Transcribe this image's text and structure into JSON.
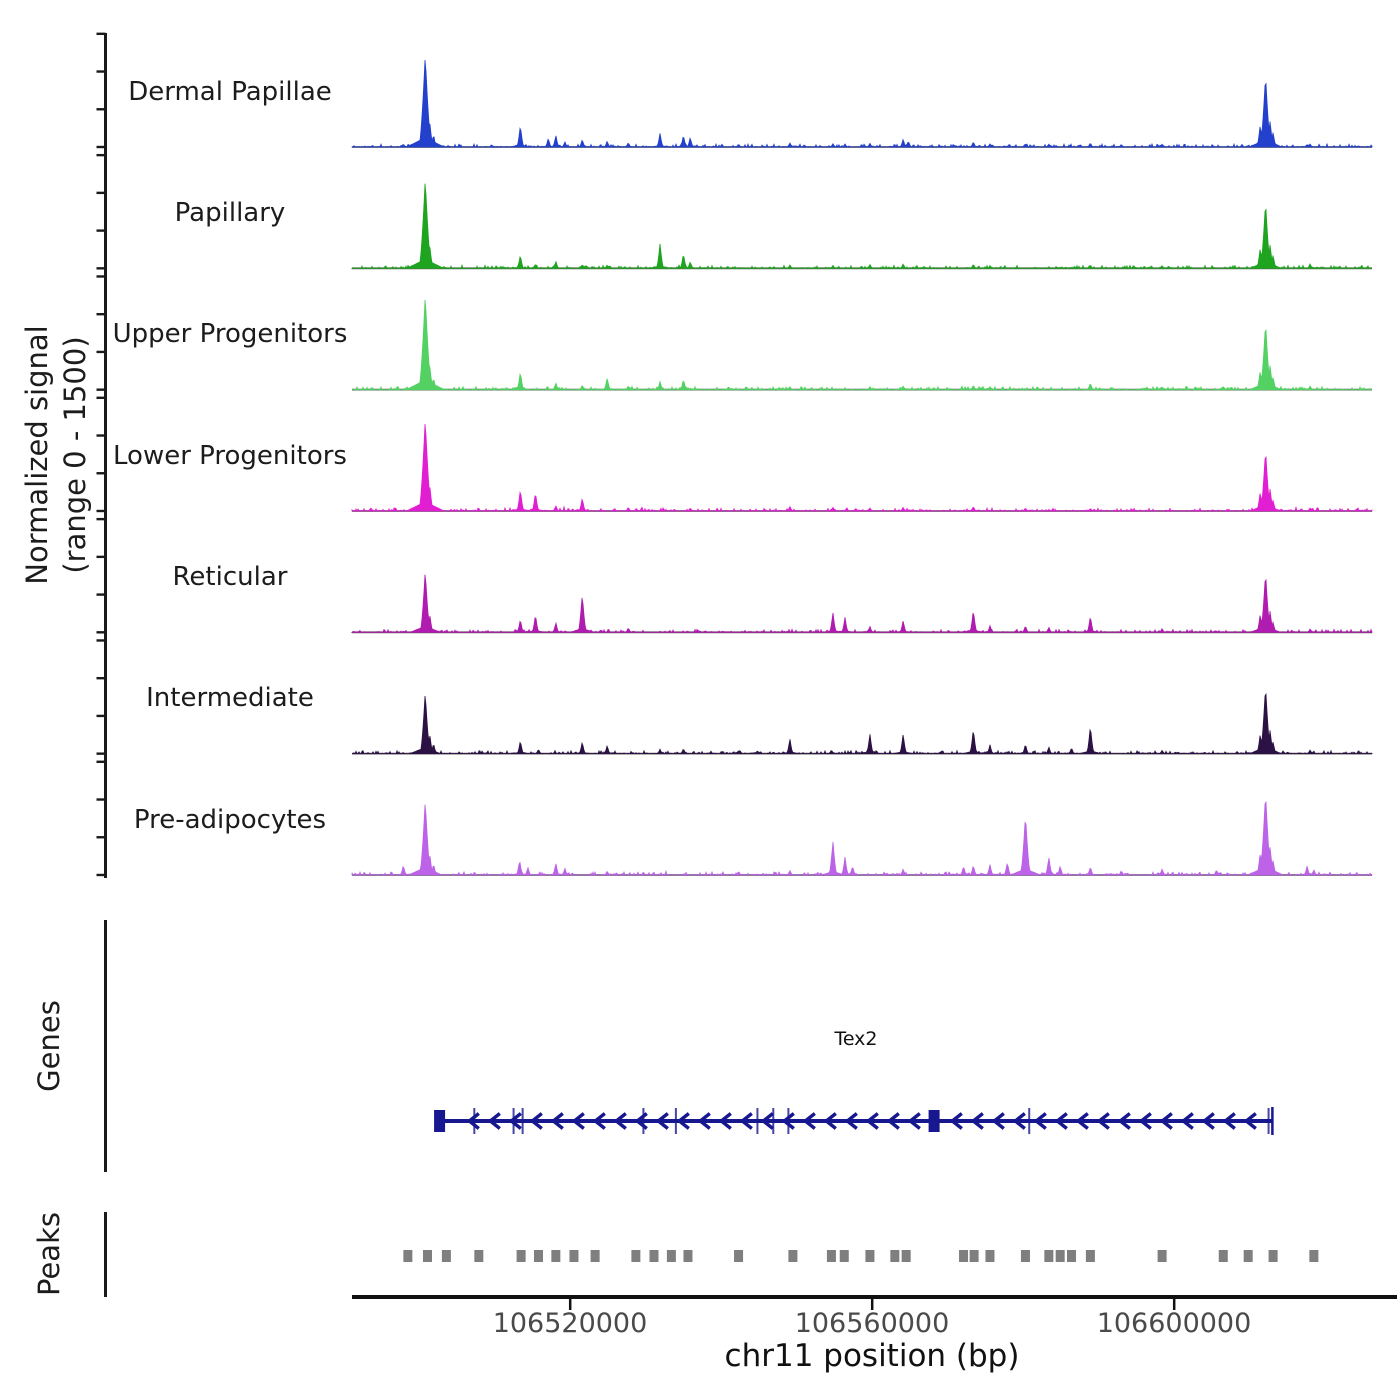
{
  "labels": {
    "y_axis_line1": "Normalized signal",
    "y_axis_line2": "(range 0 - 1500)",
    "genes_section": "Genes",
    "peaks_section": "Peaks",
    "x_axis": "chr11 position (bp)",
    "x_ticks": [
      {
        "bp": 106520000,
        "label": "106520000"
      },
      {
        "bp": 106560000,
        "label": "106560000"
      },
      {
        "bp": 106600000,
        "label": "106600000"
      }
    ]
  },
  "chart_data": {
    "type": "area",
    "title": "",
    "xlabel": "chr11 position (bp)",
    "ylabel": "Normalized signal (range 0 - 1500)",
    "x_range_bp": [
      106491100,
      106626200
    ],
    "y_range_per_track": [
      0,
      1500
    ],
    "y_ticks_per_track": [
      0,
      500,
      1000,
      1500
    ],
    "grid": false,
    "legend": "track labels at left",
    "series": [
      {
        "name": "Dermal Papillae",
        "color": "#2341cc",
        "peaks": [
          [
            106497900,
            40
          ],
          [
            106500800,
            1220
          ],
          [
            106501400,
            330
          ],
          [
            106501900,
            170
          ],
          [
            106513400,
            290
          ],
          [
            106517100,
            120
          ],
          [
            106518100,
            160
          ],
          [
            106519300,
            70
          ],
          [
            106521600,
            100
          ],
          [
            106524900,
            80
          ],
          [
            106527700,
            60
          ],
          [
            106531900,
            185
          ],
          [
            106535000,
            160
          ],
          [
            106535900,
            130
          ],
          [
            106542300,
            40
          ],
          [
            106549100,
            55
          ],
          [
            106554800,
            45
          ],
          [
            106556400,
            40
          ],
          [
            106559700,
            50
          ],
          [
            106564100,
            105
          ],
          [
            106564800,
            80
          ],
          [
            106573400,
            70
          ],
          [
            106575600,
            40
          ],
          [
            106580300,
            45
          ],
          [
            106583400,
            40
          ],
          [
            106588900,
            55
          ],
          [
            106593000,
            35
          ],
          [
            106598400,
            40
          ],
          [
            106611400,
            300
          ],
          [
            106612100,
            955
          ],
          [
            106612700,
            350
          ],
          [
            106613100,
            200
          ],
          [
            106618000,
            40
          ]
        ]
      },
      {
        "name": "Papillary",
        "color": "#1fa41f",
        "peaks": [
          [
            106500800,
            1190
          ],
          [
            106501400,
            300
          ],
          [
            106513400,
            180
          ],
          [
            106515400,
            60
          ],
          [
            106518100,
            95
          ],
          [
            106521600,
            50
          ],
          [
            106524900,
            45
          ],
          [
            106531900,
            330
          ],
          [
            106535000,
            200
          ],
          [
            106535900,
            90
          ],
          [
            106549100,
            45
          ],
          [
            106554800,
            40
          ],
          [
            106559700,
            50
          ],
          [
            106564100,
            60
          ],
          [
            106573400,
            55
          ],
          [
            106575600,
            35
          ],
          [
            106588900,
            45
          ],
          [
            106598400,
            35
          ],
          [
            106611400,
            280
          ],
          [
            106612100,
            890
          ],
          [
            106612700,
            320
          ],
          [
            106613100,
            180
          ],
          [
            106618000,
            60
          ]
        ]
      },
      {
        "name": "Upper Progenitors",
        "color": "#53d163",
        "peaks": [
          [
            106500800,
            1260
          ],
          [
            106501400,
            320
          ],
          [
            106501900,
            160
          ],
          [
            106513400,
            240
          ],
          [
            106518100,
            90
          ],
          [
            106521600,
            60
          ],
          [
            106524900,
            160
          ],
          [
            106527700,
            50
          ],
          [
            106531900,
            110
          ],
          [
            106535000,
            140
          ],
          [
            106549100,
            40
          ],
          [
            106559700,
            40
          ],
          [
            106564100,
            50
          ],
          [
            106573400,
            60
          ],
          [
            106575600,
            40
          ],
          [
            106588900,
            90
          ],
          [
            106598400,
            35
          ],
          [
            106606500,
            45
          ],
          [
            106611400,
            260
          ],
          [
            106612100,
            900
          ],
          [
            106612700,
            330
          ],
          [
            106613100,
            170
          ],
          [
            106618000,
            50
          ]
        ]
      },
      {
        "name": "Lower Progenitors",
        "color": "#e11ed2",
        "peaks": [
          [
            106500800,
            1220
          ],
          [
            106501400,
            340
          ],
          [
            106513400,
            290
          ],
          [
            106515400,
            250
          ],
          [
            106518100,
            70
          ],
          [
            106521600,
            175
          ],
          [
            106527700,
            50
          ],
          [
            106535900,
            40
          ],
          [
            106549100,
            60
          ],
          [
            106554800,
            50
          ],
          [
            106559700,
            40
          ],
          [
            106564100,
            50
          ],
          [
            106573400,
            60
          ],
          [
            106580300,
            40
          ],
          [
            106588900,
            35
          ],
          [
            106611400,
            260
          ],
          [
            106612100,
            820
          ],
          [
            106612700,
            300
          ],
          [
            106613100,
            150
          ],
          [
            106618000,
            40
          ]
        ]
      },
      {
        "name": "Reticular",
        "color": "#b01bb0",
        "peaks": [
          [
            106500800,
            820
          ],
          [
            106501400,
            240
          ],
          [
            106513400,
            175
          ],
          [
            106515400,
            240
          ],
          [
            106518100,
            130
          ],
          [
            106521600,
            505
          ],
          [
            106527700,
            60
          ],
          [
            106554800,
            265
          ],
          [
            106556400,
            200
          ],
          [
            106559700,
            80
          ],
          [
            106564100,
            160
          ],
          [
            106573400,
            300
          ],
          [
            106575600,
            90
          ],
          [
            106580300,
            90
          ],
          [
            106583400,
            70
          ],
          [
            106588900,
            220
          ],
          [
            106598400,
            50
          ],
          [
            106611400,
            250
          ],
          [
            106612100,
            800
          ],
          [
            106612700,
            290
          ],
          [
            106613100,
            140
          ],
          [
            106618000,
            45
          ]
        ]
      },
      {
        "name": "Intermediate",
        "color": "#2c1244",
        "peaks": [
          [
            106500800,
            820
          ],
          [
            106501400,
            260
          ],
          [
            106501900,
            140
          ],
          [
            106513400,
            175
          ],
          [
            106515800,
            60
          ],
          [
            106521600,
            160
          ],
          [
            106524900,
            110
          ],
          [
            106531900,
            60
          ],
          [
            106535000,
            70
          ],
          [
            106542300,
            45
          ],
          [
            106544800,
            40
          ],
          [
            106549100,
            200
          ],
          [
            106554600,
            50
          ],
          [
            106559700,
            265
          ],
          [
            106564100,
            265
          ],
          [
            106573400,
            330
          ],
          [
            106575600,
            120
          ],
          [
            106580300,
            130
          ],
          [
            106583400,
            90
          ],
          [
            106586400,
            80
          ],
          [
            106588900,
            370
          ],
          [
            106598400,
            45
          ],
          [
            106611400,
            270
          ],
          [
            106612100,
            900
          ],
          [
            106612700,
            320
          ],
          [
            106613100,
            160
          ],
          [
            106618000,
            50
          ]
        ]
      },
      {
        "name": "Pre-adipocytes",
        "color": "#bc63e8",
        "peaks": [
          [
            106497900,
            130
          ],
          [
            106500800,
            995
          ],
          [
            106501400,
            280
          ],
          [
            106501900,
            150
          ],
          [
            106513300,
            200
          ],
          [
            106514400,
            100
          ],
          [
            106518100,
            160
          ],
          [
            106519300,
            90
          ],
          [
            106524900,
            50
          ],
          [
            106529700,
            40
          ],
          [
            106542300,
            50
          ],
          [
            106549100,
            60
          ],
          [
            106554800,
            450
          ],
          [
            106556400,
            240
          ],
          [
            106557400,
            120
          ],
          [
            106564100,
            80
          ],
          [
            106572100,
            120
          ],
          [
            106573400,
            130
          ],
          [
            106575600,
            140
          ],
          [
            106577900,
            170
          ],
          [
            106580300,
            800
          ],
          [
            106583400,
            240
          ],
          [
            106584900,
            120
          ],
          [
            106588900,
            110
          ],
          [
            106593000,
            60
          ],
          [
            106598400,
            80
          ],
          [
            106605600,
            70
          ],
          [
            106611400,
            300
          ],
          [
            106612100,
            1090
          ],
          [
            106612700,
            380
          ],
          [
            106613100,
            200
          ],
          [
            106617600,
            120
          ],
          [
            106618500,
            70
          ]
        ]
      }
    ],
    "gene_track": {
      "name": "Tex2",
      "strand": "-",
      "color": "#17178f",
      "start_bp": 106502400,
      "end_bp": 106613000,
      "exon_boxes_bp": [
        106502700,
        106568200
      ],
      "exon_ticks_bp": [
        106507300,
        106512500,
        106513700,
        106529700,
        106534000,
        106544800,
        106546900,
        106548900,
        106580800,
        106612500
      ]
    },
    "peaks_track": {
      "color": "#7f7f7f",
      "boxes_bp": [
        106498500,
        106501100,
        106503600,
        106507900,
        106513500,
        106515800,
        106518100,
        106520500,
        106523300,
        106528700,
        106531100,
        106533400,
        106535600,
        106542300,
        106549500,
        106554600,
        106556300,
        106559700,
        106563000,
        106564500,
        106572100,
        106573500,
        106575600,
        106580300,
        106583400,
        106584900,
        106586400,
        106588900,
        106598400,
        106606500,
        106609800,
        106613100,
        106618500
      ]
    }
  }
}
